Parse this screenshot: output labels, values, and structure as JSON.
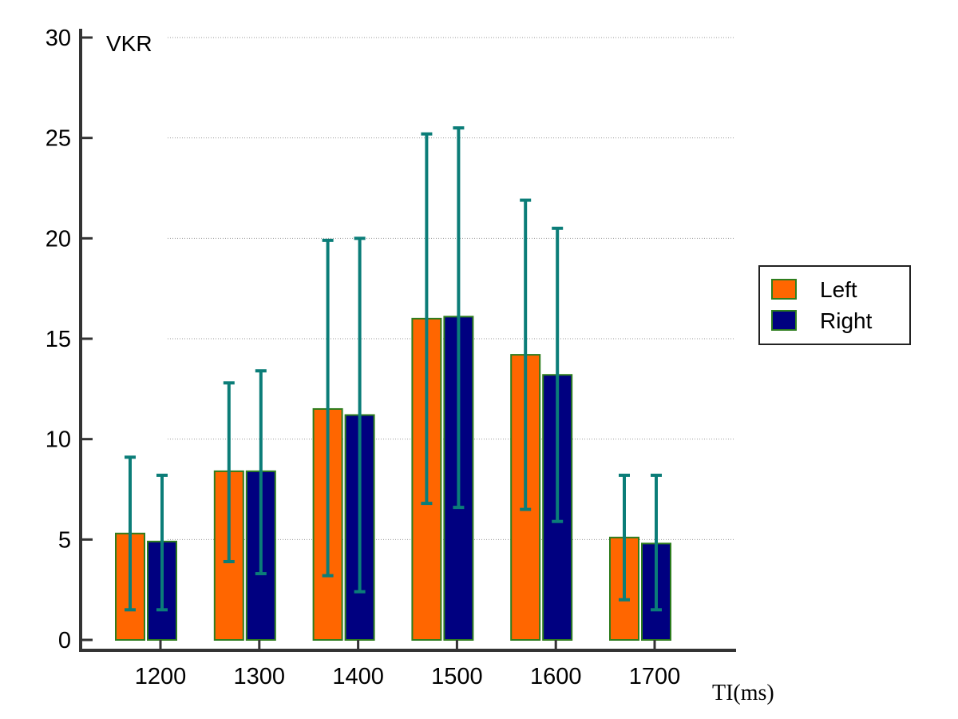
{
  "chart_data": {
    "type": "bar",
    "title": "",
    "ylabel": "VKR",
    "xlabel": "TI(ms)",
    "categories": [
      "1200",
      "1300",
      "1400",
      "1500",
      "1600",
      "1700"
    ],
    "ylim": [
      0,
      30
    ],
    "yticks": [
      0,
      5,
      10,
      15,
      20,
      25,
      30
    ],
    "grid": "horizontal dotted",
    "legend_position": "right",
    "series": [
      {
        "name": "Left",
        "color": "#FF6600",
        "values": [
          5.3,
          8.4,
          11.5,
          16.0,
          14.2,
          5.1
        ],
        "err_low": [
          1.5,
          3.9,
          3.2,
          6.8,
          6.5,
          2.0
        ],
        "err_high": [
          9.1,
          12.8,
          19.9,
          25.2,
          21.9,
          8.2
        ]
      },
      {
        "name": "Right",
        "color": "#000080",
        "values": [
          4.9,
          8.4,
          11.2,
          16.1,
          13.2,
          4.8
        ],
        "err_low": [
          1.5,
          3.3,
          2.4,
          6.6,
          5.9,
          1.5
        ],
        "err_high": [
          8.2,
          13.4,
          20.0,
          25.5,
          20.5,
          8.2
        ]
      }
    ],
    "bar_edge_color": "#2E7D1E",
    "error_bar_color": "#0B7D78"
  }
}
